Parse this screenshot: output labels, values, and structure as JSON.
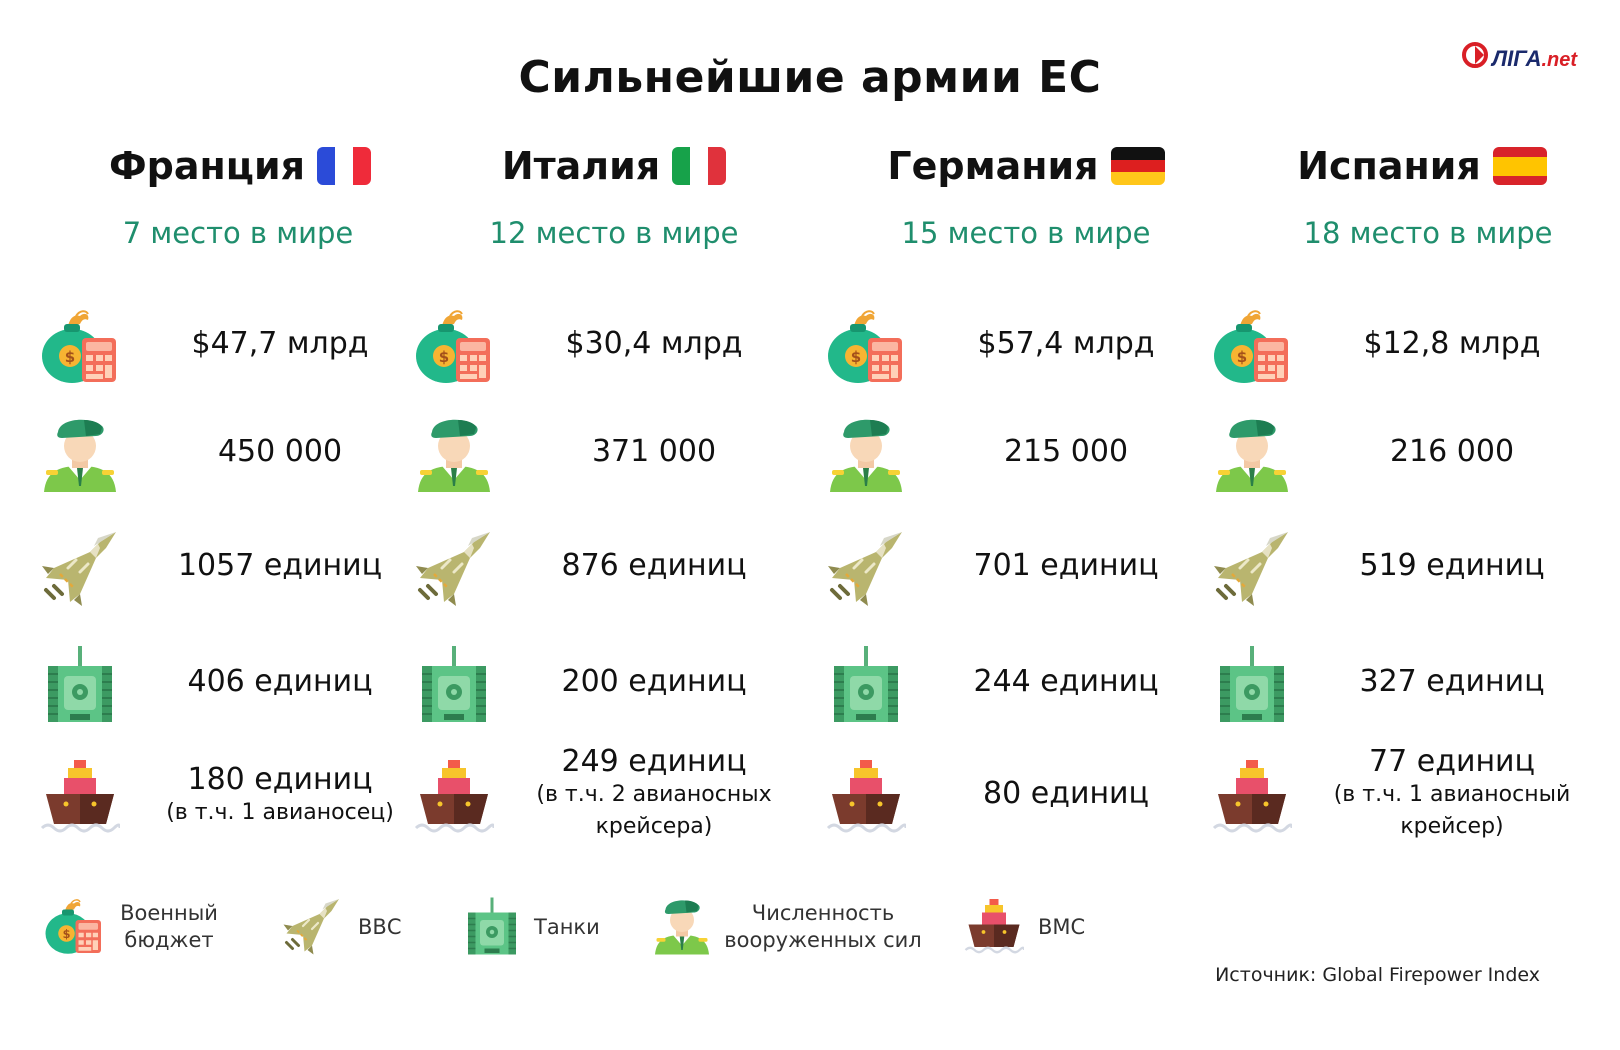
{
  "title": "Сильнейшие армии ЕС",
  "logo": {
    "main": "ЛІГА",
    "suffix": ".net"
  },
  "countries": [
    {
      "name": "Франция",
      "rank": "7 место в мире",
      "budget": "$47,7 млрд",
      "personnel": "450 000",
      "aircraft": "1057 единиц",
      "tanks": "406 единиц",
      "navy": "180 единиц",
      "navy_note": "(в т.ч. 1 авианосец)",
      "flag": [
        "#2b4bd8",
        "#ffffff",
        "#ef2b3a"
      ]
    },
    {
      "name": "Италия",
      "rank": "12 место в мире",
      "budget": "$30,4 млрд",
      "personnel": "371 000",
      "aircraft": "876 единиц",
      "tanks": "200 единиц",
      "navy": "249 единиц",
      "navy_note": "(в т.ч. 2 авианосных крейсера)",
      "flag": [
        "#17a24a",
        "#ffffff",
        "#e0323c"
      ]
    },
    {
      "name": "Германия",
      "rank": "15 место в мире",
      "budget": "$57,4 млрд",
      "personnel": "215 000",
      "aircraft": "701 единиц",
      "tanks": "244 единиц",
      "navy": "80 единиц",
      "navy_note": "",
      "flag": [
        "#111111",
        "#dd1f1f",
        "#ffc61a"
      ]
    },
    {
      "name": "Испания",
      "rank": "18 место в мире",
      "budget": "$12,8 млрд",
      "personnel": "216 000",
      "aircraft": "519 единиц",
      "tanks": "327 единиц",
      "navy": "77 единиц",
      "navy_note": "(в т.ч. 1 авианосный крейсер)",
      "flag": [
        "#d8232a",
        "#ffc400",
        "#d8232a"
      ]
    }
  ],
  "legend": {
    "budget": "Военный бюджет",
    "air": "ВВС",
    "tanks": "Танки",
    "personnel": "Численность вооруженных сил",
    "navy": "ВМС"
  },
  "source": "Источник: Global Firepower Index",
  "colors": {
    "rank": "#1f8e6d",
    "accent_green": "#2bbf7f"
  }
}
